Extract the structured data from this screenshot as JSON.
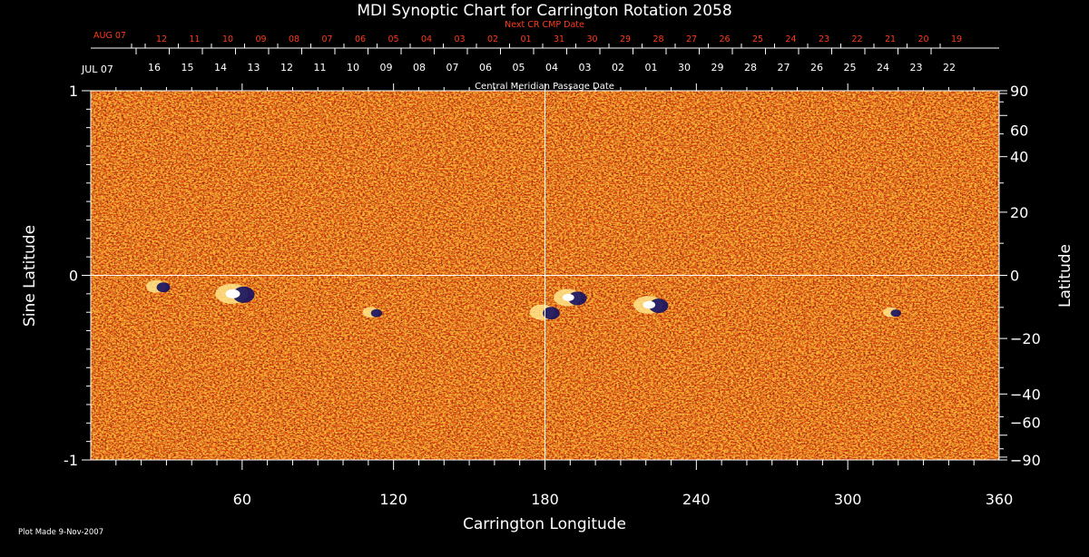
{
  "chart_data": {
    "type": "heatmap",
    "title": "MDI Synoptic Chart for Carrington Rotation 2058",
    "xlabel": "Carrington Longitude",
    "ylabel_left": "Sine Latitude",
    "ylabel_right": "Latitude",
    "xlim": [
      0,
      360
    ],
    "ylim": [
      -1,
      1
    ],
    "x_ticks": [
      60,
      120,
      180,
      240,
      300,
      360
    ],
    "y_ticks_left": [
      1,
      0,
      -1
    ],
    "y_ticks_right": [
      90,
      60,
      40,
      20,
      0,
      -20,
      -40,
      -60,
      -90
    ],
    "top_axis_upper_label": "Next CR CMP Date",
    "top_axis_upper_start": "AUG 07",
    "top_axis_upper_days": [
      "12",
      "11",
      "10",
      "09",
      "08",
      "07",
      "06",
      "05",
      "04",
      "03",
      "02",
      "01",
      "31",
      "30",
      "29",
      "28",
      "27",
      "26",
      "25",
      "24",
      "23",
      "22",
      "21",
      "20",
      "19"
    ],
    "top_axis_lower_label": "Central Meridian Passage Date",
    "top_axis_lower_start": "JUL 07",
    "top_axis_lower_days": [
      "16",
      "15",
      "14",
      "13",
      "12",
      "11",
      "10",
      "09",
      "08",
      "07",
      "06",
      "05",
      "04",
      "03",
      "02",
      "01",
      "30",
      "29",
      "28",
      "27",
      "26",
      "25",
      "24",
      "23",
      "22"
    ],
    "crosshair": {
      "longitude": 180,
      "sine_latitude": 0
    },
    "active_regions": [
      {
        "longitude": 57,
        "sine_latitude": -0.1,
        "strength": 1.0
      },
      {
        "longitude": 27,
        "sine_latitude": -0.06,
        "strength": 0.5
      },
      {
        "longitude": 180,
        "sine_latitude": -0.2,
        "strength": 0.7
      },
      {
        "longitude": 190,
        "sine_latitude": -0.12,
        "strength": 0.8
      },
      {
        "longitude": 222,
        "sine_latitude": -0.16,
        "strength": 0.85
      },
      {
        "longitude": 112,
        "sine_latitude": -0.2,
        "strength": 0.35
      },
      {
        "longitude": 318,
        "sine_latitude": -0.2,
        "strength": 0.3
      }
    ],
    "colors": {
      "background": "#000000",
      "field": "#e24a12",
      "positive": "#ffe27a",
      "negative": "#1a1a6e",
      "axis": "#ffffff",
      "date_red": "#ff3a1a"
    },
    "footnote": "Plot Made  9-Nov-2007"
  }
}
